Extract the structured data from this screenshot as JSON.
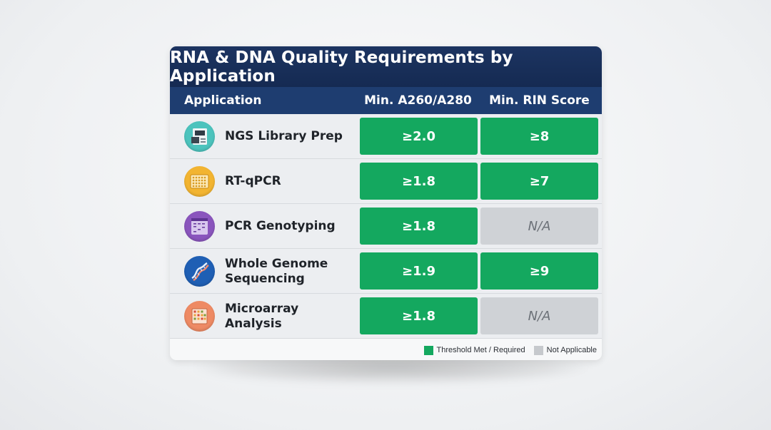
{
  "title": "RNA & DNA Quality Requirements by Application",
  "headers": {
    "application": "Application",
    "a260": "Min. A260/A280",
    "rin": "Min. RIN Score"
  },
  "rows": [
    {
      "name": "NGS Library Prep",
      "a260": "≥2.0",
      "rin": "≥8",
      "a260_status": "met",
      "rin_status": "met",
      "icon": "sequencer-icon",
      "icon_color": "#4cc3bd"
    },
    {
      "name": "RT-qPCR",
      "a260": "≥1.8",
      "rin": "≥7",
      "a260_status": "met",
      "rin_status": "met",
      "icon": "well-plate-icon",
      "icon_color": "#f2b431"
    },
    {
      "name": "PCR Genotyping",
      "a260": "≥1.8",
      "rin": "N/A",
      "a260_status": "met",
      "rin_status": "na",
      "icon": "gel-icon",
      "icon_color": "#8a55bd"
    },
    {
      "name": "Whole Genome Sequencing",
      "a260": "≥1.9",
      "rin": "≥9",
      "a260_status": "met",
      "rin_status": "met",
      "icon": "dna-icon",
      "icon_color": "#1f5fb4"
    },
    {
      "name": "Microarray Analysis",
      "a260": "≥1.8",
      "rin": "N/A",
      "a260_status": "met",
      "rin_status": "na",
      "icon": "microarray-icon",
      "icon_color": "#ee8a64"
    }
  ],
  "legend": {
    "met": "Threshold Met / Required",
    "na": "Not Applicable"
  },
  "colors": {
    "title_bg": "#1c3461",
    "header_bg": "#1e3d70",
    "met": "#14a85f",
    "na": "#cfd2d6"
  }
}
